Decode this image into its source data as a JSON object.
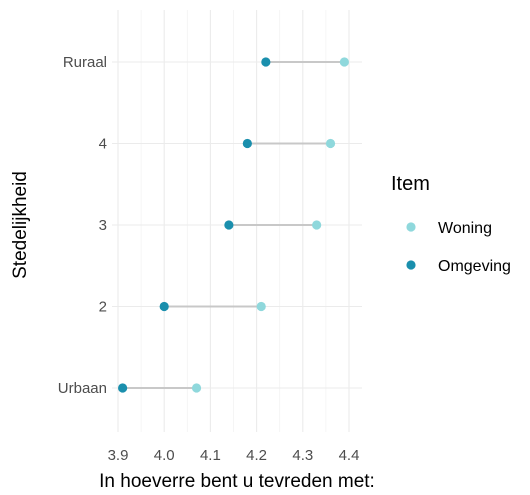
{
  "chart_data": {
    "type": "dumbbell",
    "xlabel": "In hoeverre bent u tevreden met:",
    "ylabel": "Stedelijkheid",
    "xlim": [
      3.9,
      4.4
    ],
    "x_ticks": [
      "3.9",
      "4.0",
      "4.1",
      "4.2",
      "4.3",
      "4.4"
    ],
    "categories": [
      "Ruraal",
      "4",
      "3",
      "2",
      "Urbaan"
    ],
    "series": [
      {
        "name": "Woning",
        "color": "#8fd8dc",
        "values": [
          4.39,
          4.36,
          4.33,
          4.21,
          4.07
        ]
      },
      {
        "name": "Omgeving",
        "color": "#1a8fad",
        "values": [
          4.22,
          4.18,
          4.14,
          4.0,
          3.91
        ]
      }
    ],
    "legend": {
      "title": "Item",
      "position": "right"
    },
    "connector_color": "#c8c8c8",
    "grid": true
  }
}
